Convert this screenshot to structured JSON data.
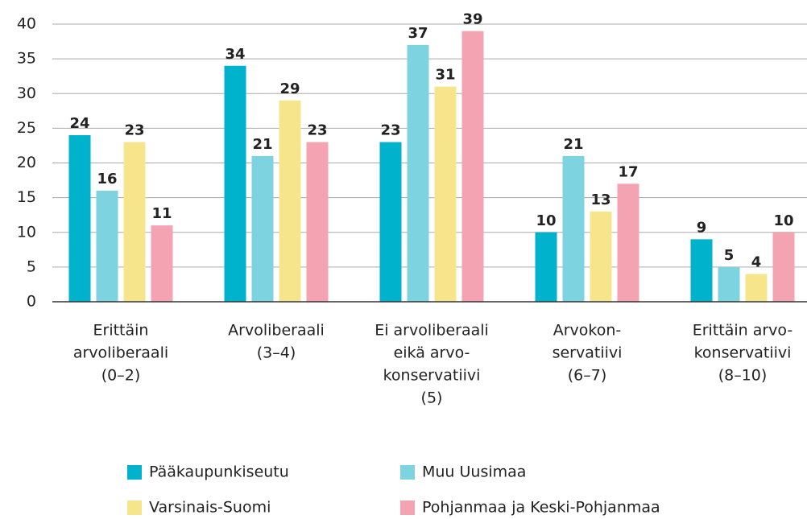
{
  "chart_data": {
    "type": "bar",
    "categories": [
      [
        "Erittäin",
        "arvoliberaali",
        "(0–2)"
      ],
      [
        "Arvoliberaali",
        "(3–4)"
      ],
      [
        "Ei arvoliberaali",
        "eikä arvo-",
        "konservatiivi",
        "(5)"
      ],
      [
        "Arvokon-",
        "servatiivi",
        "(6–7)"
      ],
      [
        "Erittäin arvo-",
        "konservatiivi",
        "(8–10)"
      ]
    ],
    "series": [
      {
        "name": "Pääkaupunkiseutu",
        "color": "#00b2cc",
        "values": [
          24,
          34,
          23,
          10,
          9
        ]
      },
      {
        "name": "Muu Uusimaa",
        "color": "#7dd3e0",
        "values": [
          16,
          21,
          37,
          21,
          5
        ]
      },
      {
        "name": "Varsinais-Suomi",
        "color": "#f7e58c",
        "values": [
          23,
          29,
          31,
          13,
          4
        ]
      },
      {
        "name": "Pohjanmaa ja Keski-Pohjanmaa",
        "color": "#f4a3b3",
        "values": [
          11,
          23,
          39,
          17,
          10
        ]
      }
    ],
    "ylim": [
      0,
      40
    ],
    "yticks": [
      0,
      5,
      10,
      15,
      20,
      25,
      30,
      35,
      40
    ],
    "grid": true
  }
}
